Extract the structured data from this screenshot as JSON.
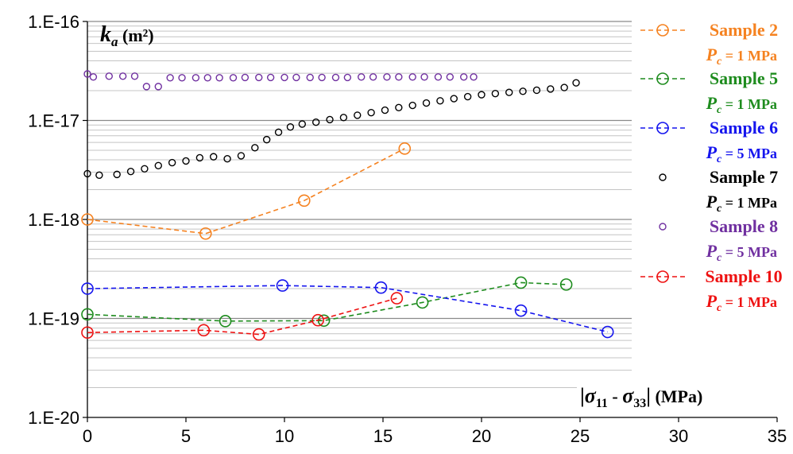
{
  "chart_data": {
    "type": "scatter",
    "xlim": [
      0,
      35
    ],
    "ylim_log10": [
      -20,
      -16
    ],
    "y_scale": "log",
    "x_ticks": [
      "0",
      "5",
      "10",
      "15",
      "20",
      "25",
      "30",
      "35"
    ],
    "y_ticks": [
      "1.E-20",
      "1.E-19",
      "1.E-18",
      "1.E-17",
      "1.E-16"
    ],
    "ylabel": {
      "sym": "k",
      "sub": "a",
      "unit": " (m²)"
    },
    "xlabel": {
      "bar": "|",
      "s1": "σ",
      "s1sub": "11",
      "mid": " - ",
      "s2": "σ",
      "s2sub": "33",
      "bar2": "|",
      "unit": " (MPa)"
    },
    "legend_position": "right",
    "series": [
      {
        "name": "Sample 2",
        "pc_sym": "P",
        "pc_sub": "c",
        "pc_value": " = 1 MPa",
        "color": "#F58220",
        "line": true,
        "points": [
          [
            0,
            1e-18
          ],
          [
            6,
            7.2e-19
          ],
          [
            11,
            1.55e-18
          ],
          [
            16.1,
            5.2e-18
          ]
        ]
      },
      {
        "name": "Sample 5",
        "pc_sym": "P",
        "pc_sub": "c",
        "pc_value": " = 1 MPa",
        "color": "#1E8C1E",
        "line": true,
        "points": [
          [
            0,
            1.1e-19
          ],
          [
            7,
            9.4e-20
          ],
          [
            12,
            9.5e-20
          ],
          [
            17,
            1.45e-19
          ],
          [
            22,
            2.3e-19
          ],
          [
            24.3,
            2.2e-19
          ]
        ]
      },
      {
        "name": "Sample 6",
        "pc_sym": "P",
        "pc_sub": "c",
        "pc_value": " = 5 MPa",
        "color": "#1515EE",
        "line": true,
        "points": [
          [
            0,
            2e-19
          ],
          [
            9.9,
            2.15e-19
          ],
          [
            14.9,
            2.05e-19
          ],
          [
            22,
            1.2e-19
          ],
          [
            26.4,
            7.3e-20
          ]
        ]
      },
      {
        "name": "Sample 7",
        "pc_sym": "P",
        "pc_sub": "c",
        "pc_value": " = 1 MPa",
        "color": "#000000",
        "line": false,
        "points": [
          [
            0,
            2.9e-18
          ],
          [
            0.6,
            2.8e-18
          ],
          [
            1.5,
            2.85e-18
          ],
          [
            2.2,
            3.05e-18
          ],
          [
            2.9,
            3.25e-18
          ],
          [
            3.6,
            3.5e-18
          ],
          [
            4.3,
            3.75e-18
          ],
          [
            5,
            3.9e-18
          ],
          [
            5.7,
            4.2e-18
          ],
          [
            6.4,
            4.3e-18
          ],
          [
            7.1,
            4.1e-18
          ],
          [
            7.8,
            4.4e-18
          ],
          [
            8.5,
            5.3e-18
          ],
          [
            9.1,
            6.4e-18
          ],
          [
            9.7,
            7.6e-18
          ],
          [
            10.3,
            8.6e-18
          ],
          [
            10.9,
            9.2e-18
          ],
          [
            11.6,
            9.6e-18
          ],
          [
            12.3,
            1.02e-17
          ],
          [
            13,
            1.07e-17
          ],
          [
            13.7,
            1.13e-17
          ],
          [
            14.4,
            1.2e-17
          ],
          [
            15.1,
            1.27e-17
          ],
          [
            15.8,
            1.35e-17
          ],
          [
            16.5,
            1.42e-17
          ],
          [
            17.2,
            1.5e-17
          ],
          [
            17.9,
            1.58e-17
          ],
          [
            18.6,
            1.66e-17
          ],
          [
            19.3,
            1.74e-17
          ],
          [
            20,
            1.82e-17
          ],
          [
            20.7,
            1.87e-17
          ],
          [
            21.4,
            1.92e-17
          ],
          [
            22.1,
            1.97e-17
          ],
          [
            22.8,
            2.02e-17
          ],
          [
            23.5,
            2.08e-17
          ],
          [
            24.2,
            2.15e-17
          ],
          [
            24.8,
            2.4e-17
          ]
        ]
      },
      {
        "name": "Sample 8",
        "pc_sym": "P",
        "pc_sub": "c",
        "pc_value": " = 5 MPa",
        "color": "#7030A0",
        "line": false,
        "points": [
          [
            0,
            2.95e-17
          ],
          [
            0.3,
            2.75e-17
          ],
          [
            1.1,
            2.8e-17
          ],
          [
            1.8,
            2.8e-17
          ],
          [
            2.4,
            2.8e-17
          ],
          [
            3,
            2.2e-17
          ],
          [
            3.6,
            2.2e-17
          ],
          [
            4.2,
            2.7e-17
          ],
          [
            4.8,
            2.7e-17
          ],
          [
            5.5,
            2.7e-17
          ],
          [
            6.1,
            2.7e-17
          ],
          [
            6.7,
            2.7e-17
          ],
          [
            7.4,
            2.7e-17
          ],
          [
            8,
            2.72e-17
          ],
          [
            8.7,
            2.72e-17
          ],
          [
            9.3,
            2.72e-17
          ],
          [
            10,
            2.72e-17
          ],
          [
            10.6,
            2.72e-17
          ],
          [
            11.3,
            2.72e-17
          ],
          [
            11.9,
            2.72e-17
          ],
          [
            12.6,
            2.72e-17
          ],
          [
            13.2,
            2.72e-17
          ],
          [
            13.9,
            2.75e-17
          ],
          [
            14.5,
            2.75e-17
          ],
          [
            15.2,
            2.75e-17
          ],
          [
            15.8,
            2.75e-17
          ],
          [
            16.5,
            2.75e-17
          ],
          [
            17.1,
            2.75e-17
          ],
          [
            17.8,
            2.75e-17
          ],
          [
            18.4,
            2.75e-17
          ],
          [
            19.1,
            2.75e-17
          ],
          [
            19.6,
            2.75e-17
          ]
        ]
      },
      {
        "name": "Sample 10",
        "pc_sym": "P",
        "pc_sub": "c",
        "pc_value": " = 1 MPa",
        "color": "#EE1111",
        "line": true,
        "points": [
          [
            0,
            7.2e-20
          ],
          [
            5.9,
            7.6e-20
          ],
          [
            8.7,
            6.9e-20
          ],
          [
            11.7,
            9.6e-20
          ],
          [
            15.7,
            1.6e-19
          ]
        ]
      }
    ]
  }
}
